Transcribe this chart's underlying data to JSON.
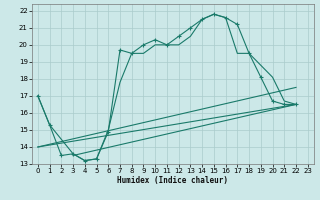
{
  "xlabel": "Humidex (Indice chaleur)",
  "bg_color": "#cce8e8",
  "grid_color": "#aacccc",
  "line_color": "#1a7a6a",
  "xlim": [
    -0.5,
    23.5
  ],
  "ylim": [
    13,
    22.4
  ],
  "xticks": [
    0,
    1,
    2,
    3,
    4,
    5,
    6,
    7,
    8,
    9,
    10,
    11,
    12,
    13,
    14,
    15,
    16,
    17,
    18,
    19,
    20,
    21,
    22,
    23
  ],
  "yticks": [
    13,
    14,
    15,
    16,
    17,
    18,
    19,
    20,
    21,
    22
  ],
  "lines": [
    {
      "x": [
        0,
        1,
        2,
        3,
        4,
        5,
        6,
        7,
        8,
        9,
        10,
        11,
        12,
        13,
        14,
        15,
        16,
        17,
        18,
        19,
        20,
        21,
        22
      ],
      "y": [
        17,
        15.3,
        13.5,
        13.6,
        13.2,
        13.3,
        14.9,
        19.7,
        19.5,
        20.0,
        20.3,
        20.0,
        20.5,
        21.0,
        21.5,
        21.8,
        21.6,
        21.2,
        19.5,
        18.1,
        16.7,
        16.5,
        16.5
      ],
      "marker": "+"
    },
    {
      "x": [
        0,
        1,
        3,
        4,
        5,
        6,
        7,
        8,
        9,
        10,
        11,
        12,
        13,
        14,
        15,
        16,
        17,
        18,
        20,
        21,
        22
      ],
      "y": [
        17,
        15.3,
        13.6,
        13.2,
        13.3,
        15.0,
        17.8,
        19.5,
        19.5,
        20.0,
        20.0,
        20.0,
        20.5,
        21.5,
        21.8,
        21.6,
        19.5,
        19.5,
        18.1,
        16.7,
        16.5
      ],
      "marker": null
    },
    {
      "x": [
        0,
        22
      ],
      "y": [
        14.0,
        17.5
      ],
      "marker": null
    },
    {
      "x": [
        0,
        22
      ],
      "y": [
        14.0,
        16.5
      ],
      "marker": null
    },
    {
      "comment": "Short diagonal from (3,13.5) to (22,16.5)",
      "x": [
        3,
        22
      ],
      "y": [
        13.5,
        16.5
      ],
      "marker": null
    }
  ]
}
